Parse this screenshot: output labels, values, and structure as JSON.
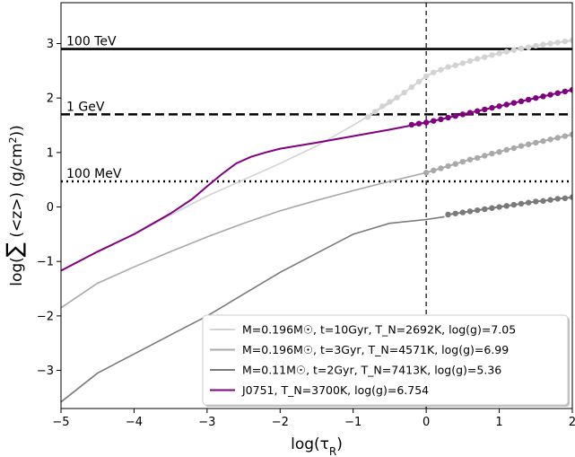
{
  "chart_data": {
    "type": "line",
    "title": "",
    "xlabel": "log(τ_R)",
    "ylabel": "log(∑ (<z>) (g/cm²))",
    "xlim": [
      -5,
      2
    ],
    "ylim": [
      -3.7,
      3.75
    ],
    "xticks": [
      -5,
      -4,
      -3,
      -2,
      -1,
      0,
      1,
      2
    ],
    "yticks": [
      -3,
      -2,
      -1,
      0,
      1,
      2,
      3
    ],
    "grid": false,
    "legend_position": "lower-right",
    "reference_lines": [
      {
        "label": "100 TeV",
        "y": 2.9,
        "style": "solid"
      },
      {
        "label": "1 GeV",
        "y": 1.7,
        "style": "dashed"
      },
      {
        "label": "100 MeV",
        "y": 0.47,
        "style": "dotted"
      }
    ],
    "vertical_line": {
      "x": 0,
      "style": "dashed"
    },
    "series": [
      {
        "name": "M=0.196M☉, t=10Gyr, T_N=2692K, log(g)=7.05",
        "color": "#d3d3d3",
        "x": [
          -5,
          -4.5,
          -4,
          -3.5,
          -3,
          -2.5,
          -2,
          -1.5,
          -1,
          -0.5,
          -0.2,
          0,
          0.1
        ],
        "y": [
          -1.17,
          -0.82,
          -0.5,
          -0.15,
          0.2,
          0.5,
          0.8,
          1.12,
          1.5,
          1.9,
          2.2,
          2.4,
          2.47
        ],
        "markers_x": [
          -0.8,
          -0.7,
          -0.6,
          -0.5,
          -0.4,
          -0.3,
          -0.2,
          -0.1,
          0,
          0.1,
          0.2,
          0.3,
          0.4,
          0.5,
          0.6,
          0.7,
          0.8,
          0.9,
          1.0,
          1.1,
          1.2,
          1.3,
          1.4,
          1.5,
          1.6,
          1.7,
          1.8,
          1.9,
          2.0
        ],
        "markers_y": [
          1.65,
          1.75,
          1.85,
          1.93,
          2.01,
          2.1,
          2.2,
          2.3,
          2.4,
          2.47,
          2.52,
          2.57,
          2.6,
          2.64,
          2.68,
          2.72,
          2.75,
          2.79,
          2.82,
          2.85,
          2.88,
          2.91,
          2.93,
          2.96,
          2.98,
          3.0,
          3.02,
          3.04,
          3.06
        ]
      },
      {
        "name": "M=0.196M☉, t=3Gyr, T_N=4571K, log(g)=6.99",
        "color": "#a9a9a9",
        "x": [
          -5,
          -4.5,
          -4,
          -3.5,
          -3,
          -2.5,
          -2,
          -1.5,
          -1,
          -0.5,
          0
        ],
        "y": [
          -1.85,
          -1.4,
          -1.1,
          -0.82,
          -0.55,
          -0.3,
          -0.07,
          0.12,
          0.3,
          0.47,
          0.63
        ],
        "markers_x": [
          0,
          0.1,
          0.2,
          0.3,
          0.4,
          0.5,
          0.6,
          0.7,
          0.8,
          0.9,
          1.0,
          1.1,
          1.2,
          1.3,
          1.4,
          1.5,
          1.6,
          1.7,
          1.8,
          1.9,
          2.0
        ],
        "markers_y": [
          0.63,
          0.67,
          0.71,
          0.75,
          0.79,
          0.83,
          0.87,
          0.9,
          0.94,
          0.98,
          1.01,
          1.05,
          1.08,
          1.12,
          1.15,
          1.18,
          1.21,
          1.24,
          1.27,
          1.3,
          1.33
        ]
      },
      {
        "name": "M=0.11M☉, t=2Gyr, T_N=7413K, log(g)=5.36",
        "color": "#7a7a7a",
        "x": [
          -5,
          -4.5,
          -4,
          -3.5,
          -3,
          -2.5,
          -2,
          -1.5,
          -1,
          -0.5,
          0,
          0.25
        ],
        "y": [
          -3.58,
          -3.05,
          -2.7,
          -2.35,
          -2.0,
          -1.6,
          -1.2,
          -0.85,
          -0.5,
          -0.3,
          -0.23,
          -0.18
        ],
        "markers_x": [
          0.3,
          0.4,
          0.5,
          0.6,
          0.7,
          0.8,
          0.9,
          1.0,
          1.1,
          1.2,
          1.3,
          1.4,
          1.5,
          1.6,
          1.7,
          1.8,
          1.9,
          2.0
        ],
        "markers_y": [
          -0.14,
          -0.12,
          -0.1,
          -0.08,
          -0.06,
          -0.04,
          -0.02,
          0.0,
          0.02,
          0.04,
          0.06,
          0.08,
          0.1,
          0.11,
          0.13,
          0.15,
          0.16,
          0.18
        ]
      },
      {
        "name": "J0751, T_N=3700K, log(g)=6.754",
        "color": "#800080",
        "x": [
          -5,
          -4.5,
          -4,
          -3.5,
          -3.2,
          -3,
          -2.8,
          -2.6,
          -2.4,
          -2.2,
          -2,
          -1.5,
          -1,
          -0.5,
          0
        ],
        "y": [
          -1.17,
          -0.82,
          -0.5,
          -0.12,
          0.15,
          0.38,
          0.6,
          0.8,
          0.92,
          1.0,
          1.07,
          1.18,
          1.3,
          1.42,
          1.55
        ],
        "markers_x": [
          -0.2,
          -0.1,
          0,
          0.1,
          0.2,
          0.3,
          0.4,
          0.5,
          0.6,
          0.7,
          0.8,
          0.9,
          1.0,
          1.1,
          1.2,
          1.3,
          1.4,
          1.5,
          1.6,
          1.7,
          1.8,
          1.9,
          2.0
        ],
        "markers_y": [
          1.51,
          1.53,
          1.55,
          1.58,
          1.61,
          1.64,
          1.67,
          1.7,
          1.73,
          1.76,
          1.79,
          1.82,
          1.85,
          1.88,
          1.91,
          1.94,
          1.97,
          2.0,
          2.03,
          2.06,
          2.09,
          2.12,
          2.15
        ]
      }
    ]
  }
}
